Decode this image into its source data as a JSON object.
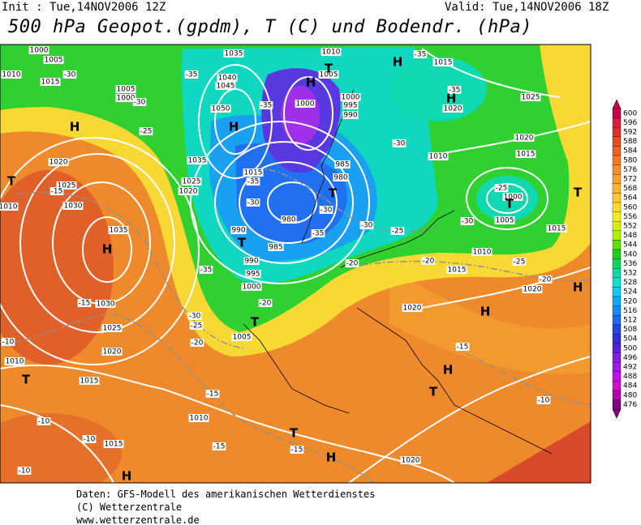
{
  "header": {
    "init": "Init : Tue,14NOV2006 12Z",
    "valid": "Valid: Tue,14NOV2006 18Z",
    "title": "500 hPa Geopot.(gpdm), T (C) und Bodendr. (hPa)"
  },
  "map": {
    "isobar_labels": [
      1000,
      1005,
      1010,
      1015,
      1035,
      1040,
      1045,
      1050,
      1035,
      1025,
      1020,
      1015,
      1005,
      1000,
      1020,
      1025,
      1030,
      1035,
      1030,
      1025,
      1020,
      1015,
      1010,
      1010,
      1015,
      1020,
      1020,
      1015,
      1010,
      1005,
      1000,
      1015,
      1020,
      1010,
      1015,
      1020,
      1025,
      1020,
      1015,
      1010,
      1005,
      1000,
      995,
      990,
      1000,
      985,
      980,
      980,
      985,
      990,
      990,
      995,
      1000,
      1005,
      1010
    ],
    "temperature_labels": [
      -30,
      -30,
      -35,
      -25,
      -15,
      -35,
      -30,
      -35,
      -30,
      -35,
      -30,
      -25,
      -20,
      -20,
      -20,
      -30,
      -25,
      -20,
      -15,
      -15,
      -15,
      -15,
      -15,
      -10,
      -10,
      -10,
      -10,
      -10,
      -30,
      -35,
      -35,
      -30,
      -25,
      -20,
      -25,
      -35
    ],
    "pressure_centers": [
      "H",
      "T",
      "H",
      "T",
      "H",
      "H",
      "H",
      "T",
      "H",
      "H",
      "T",
      "T",
      "T",
      "T",
      "H",
      "T",
      "H",
      "H",
      "T",
      "T",
      "H"
    ]
  },
  "legend": {
    "values": [
      600,
      596,
      592,
      588,
      584,
      580,
      576,
      572,
      568,
      564,
      560,
      556,
      552,
      548,
      544,
      540,
      536,
      532,
      528,
      524,
      520,
      516,
      512,
      508,
      504,
      500,
      496,
      492,
      488,
      484,
      480,
      476
    ],
    "colors": [
      "#c8004b",
      "#d81e3c",
      "#e0302a",
      "#e84a28",
      "#ec6428",
      "#f07a2a",
      "#f48e2c",
      "#f7a030",
      "#f8b432",
      "#fac834",
      "#fcdc30",
      "#f4ec20",
      "#d8f010",
      "#a8f000",
      "#60e000",
      "#20d020",
      "#10d060",
      "#10d8a0",
      "#10e0d0",
      "#10c8f0",
      "#10a8f8",
      "#1888f8",
      "#2068f0",
      "#2048e0",
      "#3030d0",
      "#5a20d8",
      "#8020e0",
      "#a018e8",
      "#c010e8",
      "#d010d0",
      "#b000a8",
      "#800080"
    ]
  },
  "footer": [
    "Daten: GFS-Modell des amerikanischen Wetterdienstes",
    "(C) Wetterzentrale",
    "www.wetterzentrale.de"
  ]
}
